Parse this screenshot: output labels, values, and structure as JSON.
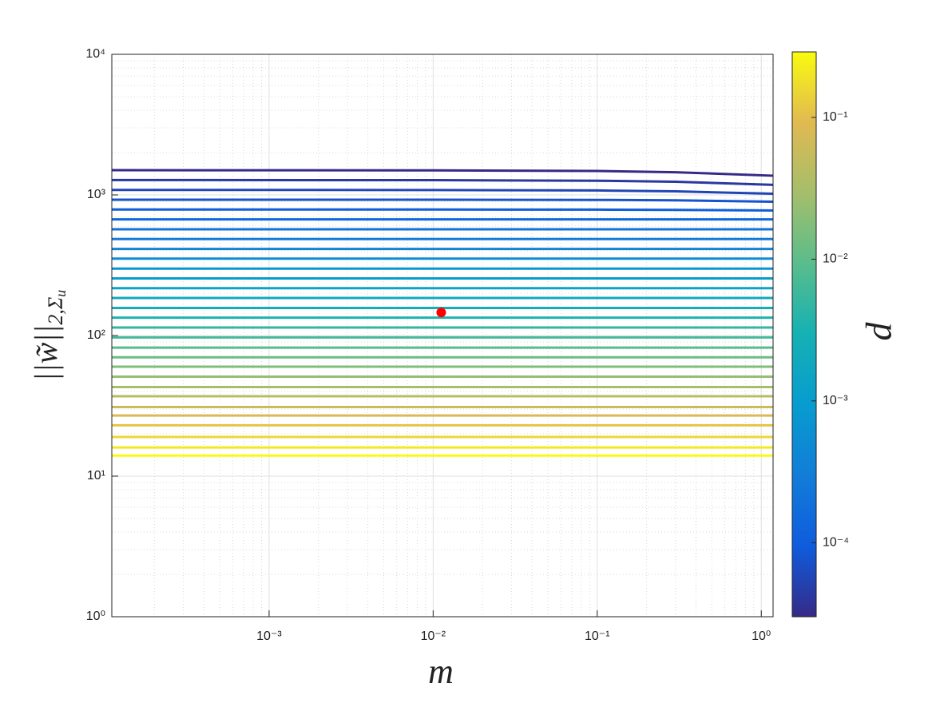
{
  "chart_data": {
    "type": "line",
    "xlabel": "m",
    "ylabel": "||w̃||",
    "ylabel_sub": "2,Σ",
    "ylabel_subsub": "u",
    "xscale": "log",
    "yscale": "log",
    "grid": true,
    "minor_grid": true,
    "xlim": [
      0.00011,
      1.18
    ],
    "ylim": [
      1,
      10000
    ],
    "xticks": [
      {
        "value": 0.001,
        "label": "10⁻³"
      },
      {
        "value": 0.01,
        "label": "10⁻²"
      },
      {
        "value": 0.1,
        "label": "10⁻¹"
      },
      {
        "value": 1,
        "label": "10⁰"
      }
    ],
    "yticks": [
      {
        "value": 1,
        "label": "10⁰"
      },
      {
        "value": 10,
        "label": "10¹"
      },
      {
        "value": 100,
        "label": "10²"
      },
      {
        "value": 1000,
        "label": "10³"
      },
      {
        "value": 10000,
        "label": "10⁴"
      }
    ],
    "x": [
      0.00011,
      0.01,
      0.1,
      0.3,
      1.18
    ],
    "series": [
      {
        "color": "#352a87",
        "values": [
          1500,
          1495,
          1480,
          1450,
          1370
        ]
      },
      {
        "color": "#2a389f",
        "values": [
          1276,
          1273,
          1262,
          1240,
          1180
        ]
      },
      {
        "color": "#2046b6",
        "values": [
          1086,
          1084,
          1076,
          1060,
          1020
        ]
      },
      {
        "color": "#1653ce",
        "values": [
          925,
          925,
          922,
          915,
          895
        ]
      },
      {
        "color": "#0f5fdc",
        "values": [
          787,
          787,
          786,
          783,
          775
        ]
      },
      {
        "color": "#1069db",
        "values": [
          670,
          670,
          670,
          670,
          670
        ]
      },
      {
        "color": "#1172da",
        "values": [
          570,
          570,
          570,
          570,
          570
        ]
      },
      {
        "color": "#127bd8",
        "values": [
          485,
          485,
          485,
          485,
          485
        ]
      },
      {
        "color": "#1083d6",
        "values": [
          413,
          413,
          413,
          413,
          413
        ]
      },
      {
        "color": "#0d8cd4",
        "values": [
          352,
          352,
          352,
          352,
          352
        ]
      },
      {
        "color": "#0a95d1",
        "values": [
          299,
          299,
          299,
          299,
          299
        ]
      },
      {
        "color": "#079dce",
        "values": [
          255,
          255,
          255,
          255,
          255
        ]
      },
      {
        "color": "#0ba3c7",
        "values": [
          217,
          217,
          217,
          217,
          217
        ]
      },
      {
        "color": "#0fa8bf",
        "values": [
          185,
          185,
          185,
          185,
          185
        ]
      },
      {
        "color": "#13aeb8",
        "values": [
          157,
          157,
          157,
          157,
          157
        ]
      },
      {
        "color": "#1eb3ae",
        "values": [
          134,
          134,
          134,
          134,
          134
        ]
      },
      {
        "color": "#31b6a3",
        "values": [
          114,
          114,
          114,
          114,
          114
        ]
      },
      {
        "color": "#44b998",
        "values": [
          97,
          97,
          97,
          97,
          97
        ]
      },
      {
        "color": "#57bd8d",
        "values": [
          82,
          82,
          82,
          82,
          82
        ]
      },
      {
        "color": "#6bbd84",
        "values": [
          70,
          70,
          70,
          70,
          70
        ]
      },
      {
        "color": "#80be7b",
        "values": [
          60,
          60,
          60,
          60,
          60
        ]
      },
      {
        "color": "#95be72",
        "values": [
          51,
          51,
          51,
          51,
          51
        ]
      },
      {
        "color": "#a9be69",
        "values": [
          43,
          43,
          43,
          43,
          43
        ]
      },
      {
        "color": "#babc62",
        "values": [
          37,
          37,
          37,
          37,
          37
        ]
      },
      {
        "color": "#cabb5b",
        "values": [
          31,
          31,
          31,
          31,
          31
        ]
      },
      {
        "color": "#dbba55",
        "values": [
          27,
          27,
          27,
          27,
          27
        ]
      },
      {
        "color": "#e5c446",
        "values": [
          23,
          23,
          23,
          23,
          23
        ]
      },
      {
        "color": "#ecd734",
        "values": [
          19,
          19,
          19,
          19,
          19
        ]
      },
      {
        "color": "#f3e921",
        "values": [
          16,
          16,
          16,
          16,
          16
        ]
      },
      {
        "color": "#f9fb0e",
        "values": [
          14,
          14,
          14,
          14,
          14
        ]
      }
    ],
    "marker": {
      "x": 0.0112,
      "y": 146,
      "color": "#ff0000"
    },
    "colorbar": {
      "label": "d",
      "scale": "log",
      "lim": [
        3e-05,
        0.29
      ],
      "ticks": [
        {
          "value": 0.0001,
          "label": "10⁻⁴"
        },
        {
          "value": 0.001,
          "label": "10⁻³"
        },
        {
          "value": 0.01,
          "label": "10⁻²"
        },
        {
          "value": 0.1,
          "label": "10⁻¹"
        }
      ],
      "colormap": [
        "#352a87",
        "#0f5cdd",
        "#127dd8",
        "#079ccf",
        "#15b1b4",
        "#59bd8c",
        "#a5be6b",
        "#e1b952",
        "#f9fb0e"
      ]
    }
  }
}
